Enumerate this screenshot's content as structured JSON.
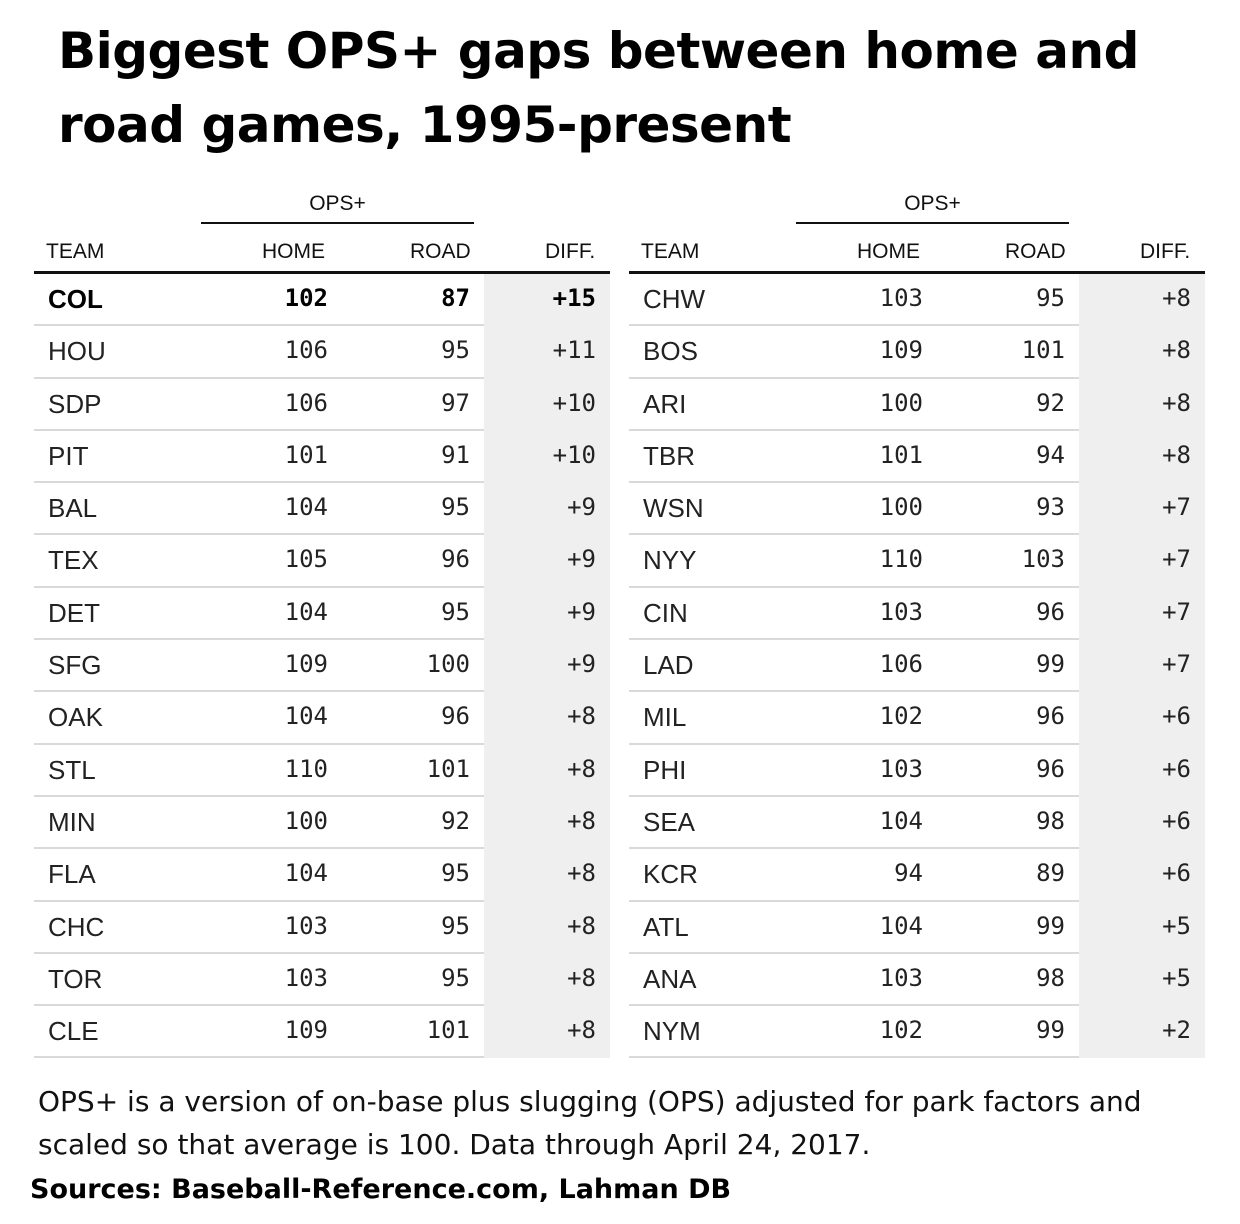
{
  "title": "Biggest OPS+ gaps between home and road games, 1995-present",
  "group_label": "OPS+",
  "headers": {
    "team": "TEAM",
    "home": "HOME",
    "road": "ROAD",
    "diff": "DIFF."
  },
  "note": "OPS+ is a version of on-base plus slugging (OPS) adjusted for park factors and scaled so that average is 100. Data through April 24, 2017.",
  "sources": "Sources: Baseball-Reference.com, Lahman DB",
  "chart_data": {
    "type": "table",
    "columns": [
      "TEAM",
      "HOME",
      "ROAD",
      "DIFF."
    ],
    "highlight_team": "COL",
    "rows": [
      {
        "team": "COL",
        "home": "102",
        "road": "87",
        "diff": "+15"
      },
      {
        "team": "HOU",
        "home": "106",
        "road": "95",
        "diff": "+11"
      },
      {
        "team": "SDP",
        "home": "106",
        "road": "97",
        "diff": "+10"
      },
      {
        "team": "PIT",
        "home": "101",
        "road": "91",
        "diff": "+10"
      },
      {
        "team": "BAL",
        "home": "104",
        "road": "95",
        "diff": "+9"
      },
      {
        "team": "TEX",
        "home": "105",
        "road": "96",
        "diff": "+9"
      },
      {
        "team": "DET",
        "home": "104",
        "road": "95",
        "diff": "+9"
      },
      {
        "team": "SFG",
        "home": "109",
        "road": "100",
        "diff": "+9"
      },
      {
        "team": "OAK",
        "home": "104",
        "road": "96",
        "diff": "+8"
      },
      {
        "team": "STL",
        "home": "110",
        "road": "101",
        "diff": "+8"
      },
      {
        "team": "MIN",
        "home": "100",
        "road": "92",
        "diff": "+8"
      },
      {
        "team": "FLA",
        "home": "104",
        "road": "95",
        "diff": "+8"
      },
      {
        "team": "CHC",
        "home": "103",
        "road": "95",
        "diff": "+8"
      },
      {
        "team": "TOR",
        "home": "103",
        "road": "95",
        "diff": "+8"
      },
      {
        "team": "CLE",
        "home": "109",
        "road": "101",
        "diff": "+8"
      },
      {
        "team": "CHW",
        "home": "103",
        "road": "95",
        "diff": "+8"
      },
      {
        "team": "BOS",
        "home": "109",
        "road": "101",
        "diff": "+8"
      },
      {
        "team": "ARI",
        "home": "100",
        "road": "92",
        "diff": "+8"
      },
      {
        "team": "TBR",
        "home": "101",
        "road": "94",
        "diff": "+8"
      },
      {
        "team": "WSN",
        "home": "100",
        "road": "93",
        "diff": "+7"
      },
      {
        "team": "NYY",
        "home": "110",
        "road": "103",
        "diff": "+7"
      },
      {
        "team": "CIN",
        "home": "103",
        "road": "96",
        "diff": "+7"
      },
      {
        "team": "LAD",
        "home": "106",
        "road": "99",
        "diff": "+7"
      },
      {
        "team": "MIL",
        "home": "102",
        "road": "96",
        "diff": "+6"
      },
      {
        "team": "PHI",
        "home": "103",
        "road": "96",
        "diff": "+6"
      },
      {
        "team": "SEA",
        "home": "104",
        "road": "98",
        "diff": "+6"
      },
      {
        "team": "KCR",
        "home": "94",
        "road": "89",
        "diff": "+6"
      },
      {
        "team": "ATL",
        "home": "104",
        "road": "99",
        "diff": "+5"
      },
      {
        "team": "ANA",
        "home": "103",
        "road": "98",
        "diff": "+5"
      },
      {
        "team": "NYM",
        "home": "102",
        "road": "99",
        "diff": "+2"
      }
    ]
  }
}
